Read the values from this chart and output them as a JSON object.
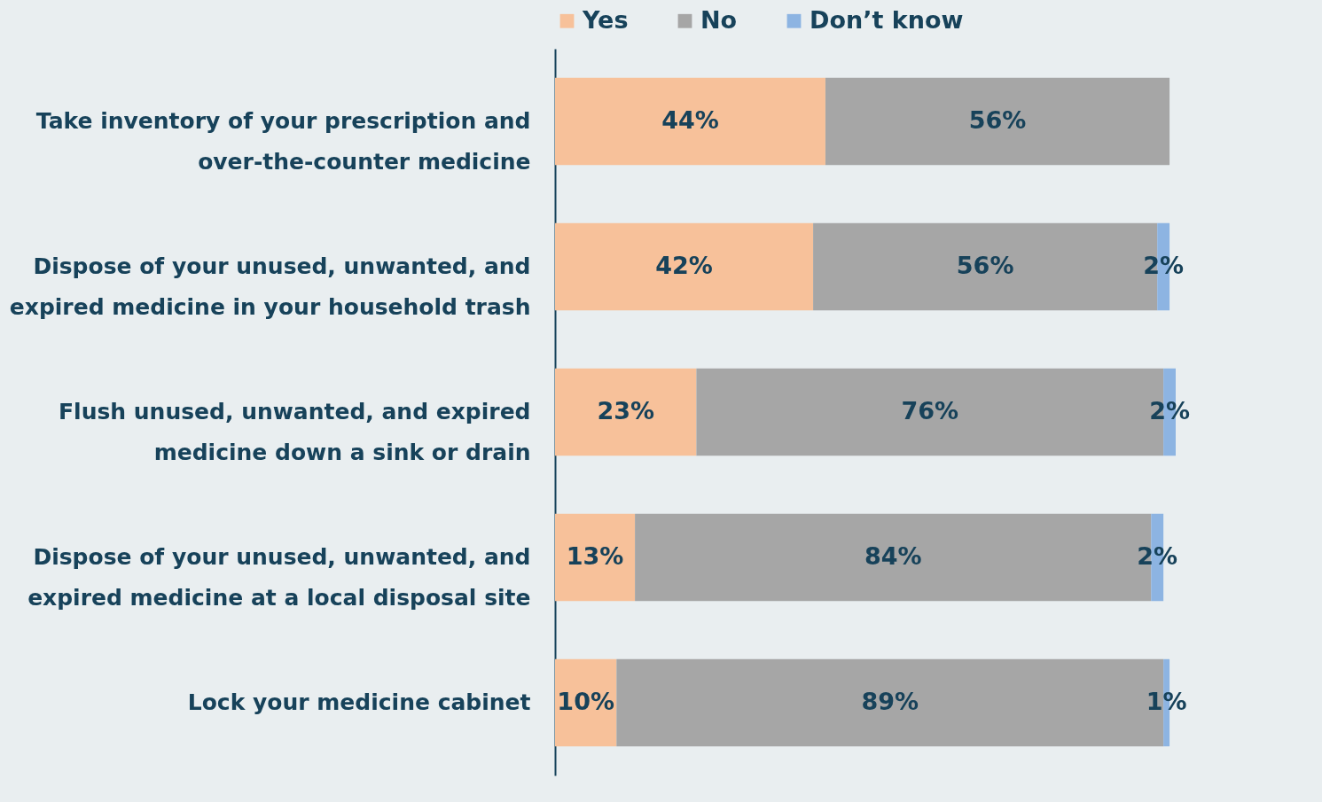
{
  "chart_data": {
    "type": "bar",
    "orientation": "horizontal",
    "stacked": true,
    "legend": "top",
    "categories": [
      "Take inventory of your prescription and over-the-counter medicine",
      "Dispose of your unused, unwanted, and expired medicine in your household trash",
      "Flush unused, unwanted, and expired medicine down a sink or drain",
      "Dispose of your unused, unwanted, and expired medicine at a local disposal site",
      "Lock your medicine cabinet"
    ],
    "series": [
      {
        "name": "Yes",
        "color": "#f7c19a",
        "values": [
          44,
          42,
          23,
          13,
          10
        ],
        "value_labels": [
          "44%",
          "42%",
          "23%",
          "13%",
          "10%"
        ]
      },
      {
        "name": "No",
        "color": "#a6a6a6",
        "values": [
          56,
          56,
          76,
          84,
          89
        ],
        "value_labels": [
          "56%",
          "56%",
          "76%",
          "84%",
          "89%"
        ]
      },
      {
        "name": "Don’t know",
        "color": "#8db4e2",
        "values": [
          null,
          2,
          2,
          2,
          1
        ],
        "value_labels": [
          null,
          "2%",
          "2%",
          "2%",
          "1%"
        ]
      }
    ]
  }
}
